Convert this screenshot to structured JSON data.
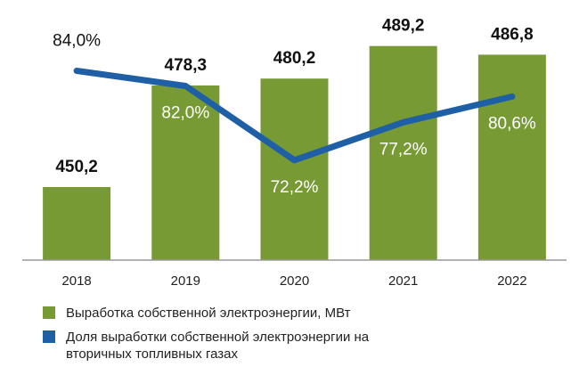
{
  "chart_data": {
    "type": "bar_line",
    "categories": [
      "2018",
      "2019",
      "2020",
      "2021",
      "2022"
    ],
    "series": [
      {
        "name": "Выработка собственной электроэнергии, МВт",
        "type": "bar",
        "color": "#779a35",
        "values": [
          450.2,
          478.3,
          480.2,
          489.2,
          486.8
        ],
        "value_labels": [
          "450,2",
          "478,3",
          "480,2",
          "489,2",
          "486,8"
        ]
      },
      {
        "name": "Доля выработки собственной электроэнергии на вторичных топливных газах",
        "type": "line",
        "axis": "y2",
        "color": "#1f5fa6",
        "values": [
          84.0,
          82.0,
          72.2,
          77.2,
          80.6
        ],
        "value_labels": [
          "84,0%",
          "82,0%",
          "72,2%",
          "77,2%",
          "80,6%"
        ]
      }
    ],
    "ylim": [
      430,
      497
    ],
    "y2lim": [
      59,
      91
    ]
  }
}
